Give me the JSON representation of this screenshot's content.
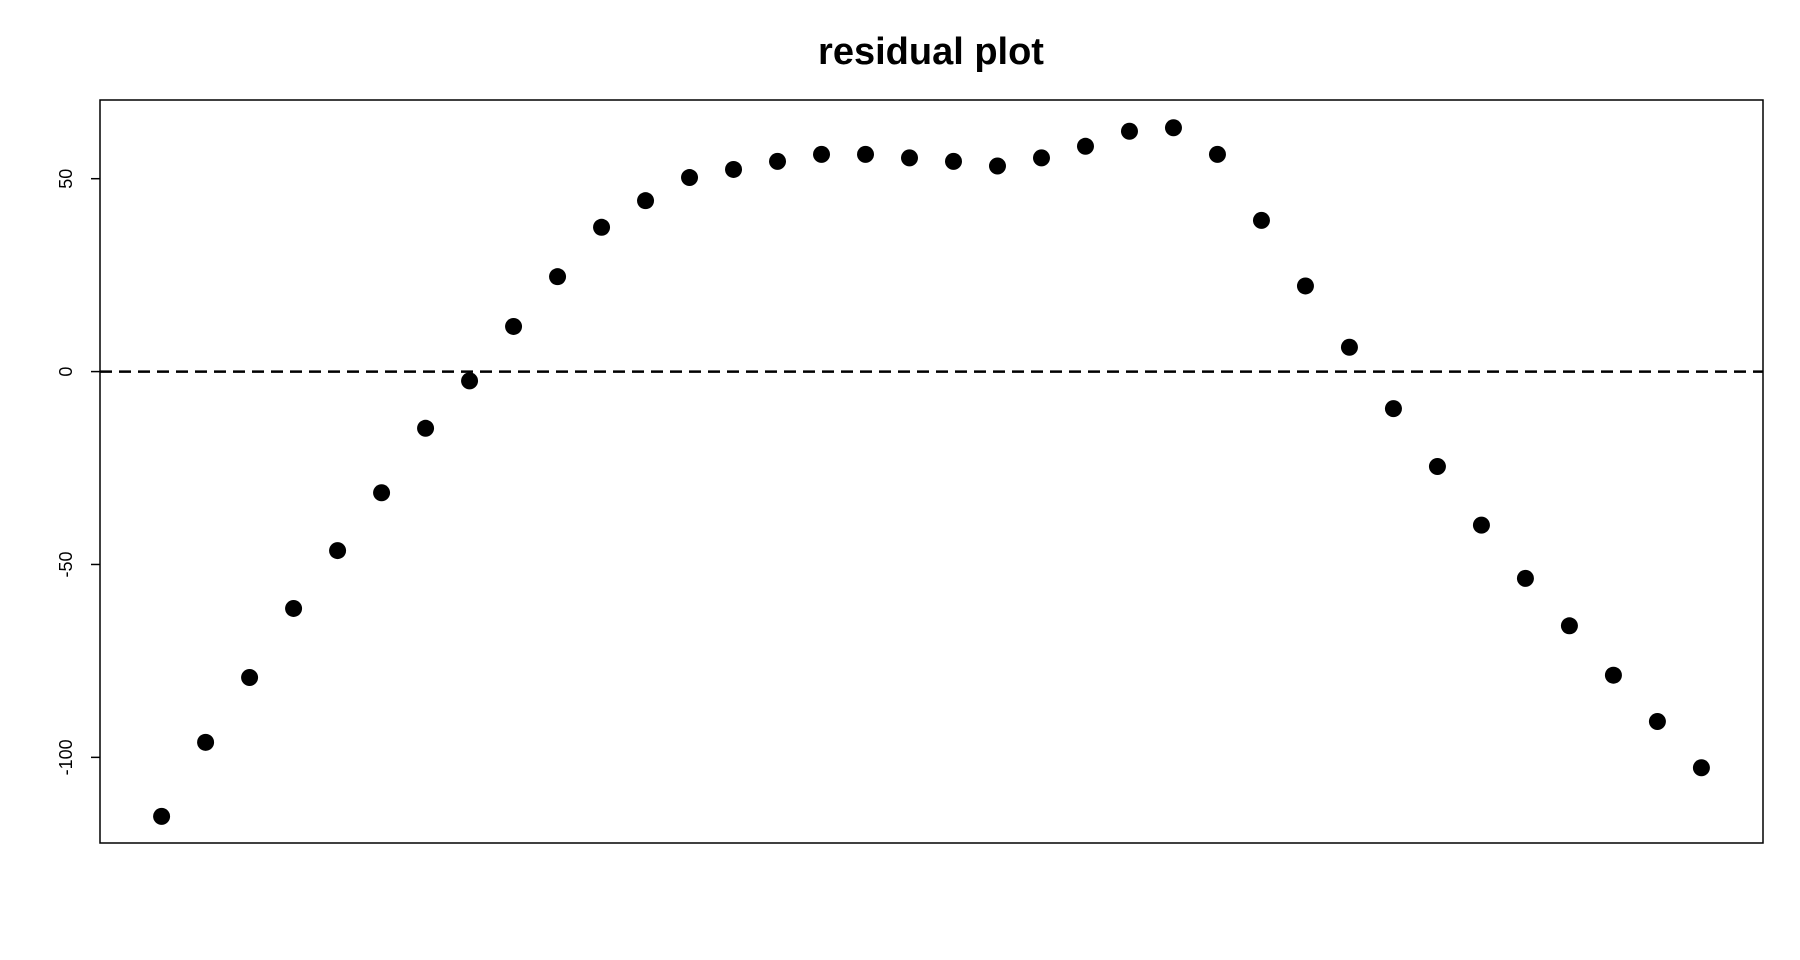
{
  "chart_data": {
    "type": "scatter",
    "title": "residual plot",
    "values": [
      -115.3,
      -96.1,
      -79.3,
      -61.4,
      -46.4,
      -31.4,
      -14.7,
      -2.4,
      11.7,
      24.6,
      37.4,
      44.3,
      50.3,
      52.4,
      54.5,
      56.3,
      56.3,
      55.4,
      54.5,
      53.3,
      55.4,
      58.4,
      62.3,
      63.2,
      56.3,
      39.2,
      22.2,
      6.3,
      -9.6,
      -24.6,
      -39.8,
      -53.6,
      -65.9,
      -78.7,
      -90.7,
      -102.7
    ],
    "color": "#000000",
    "ylim": [
      -122.2,
      70.4
    ],
    "yticks": [
      -100,
      -50,
      0,
      50
    ],
    "hline": 0,
    "hline_style": "dashed"
  }
}
